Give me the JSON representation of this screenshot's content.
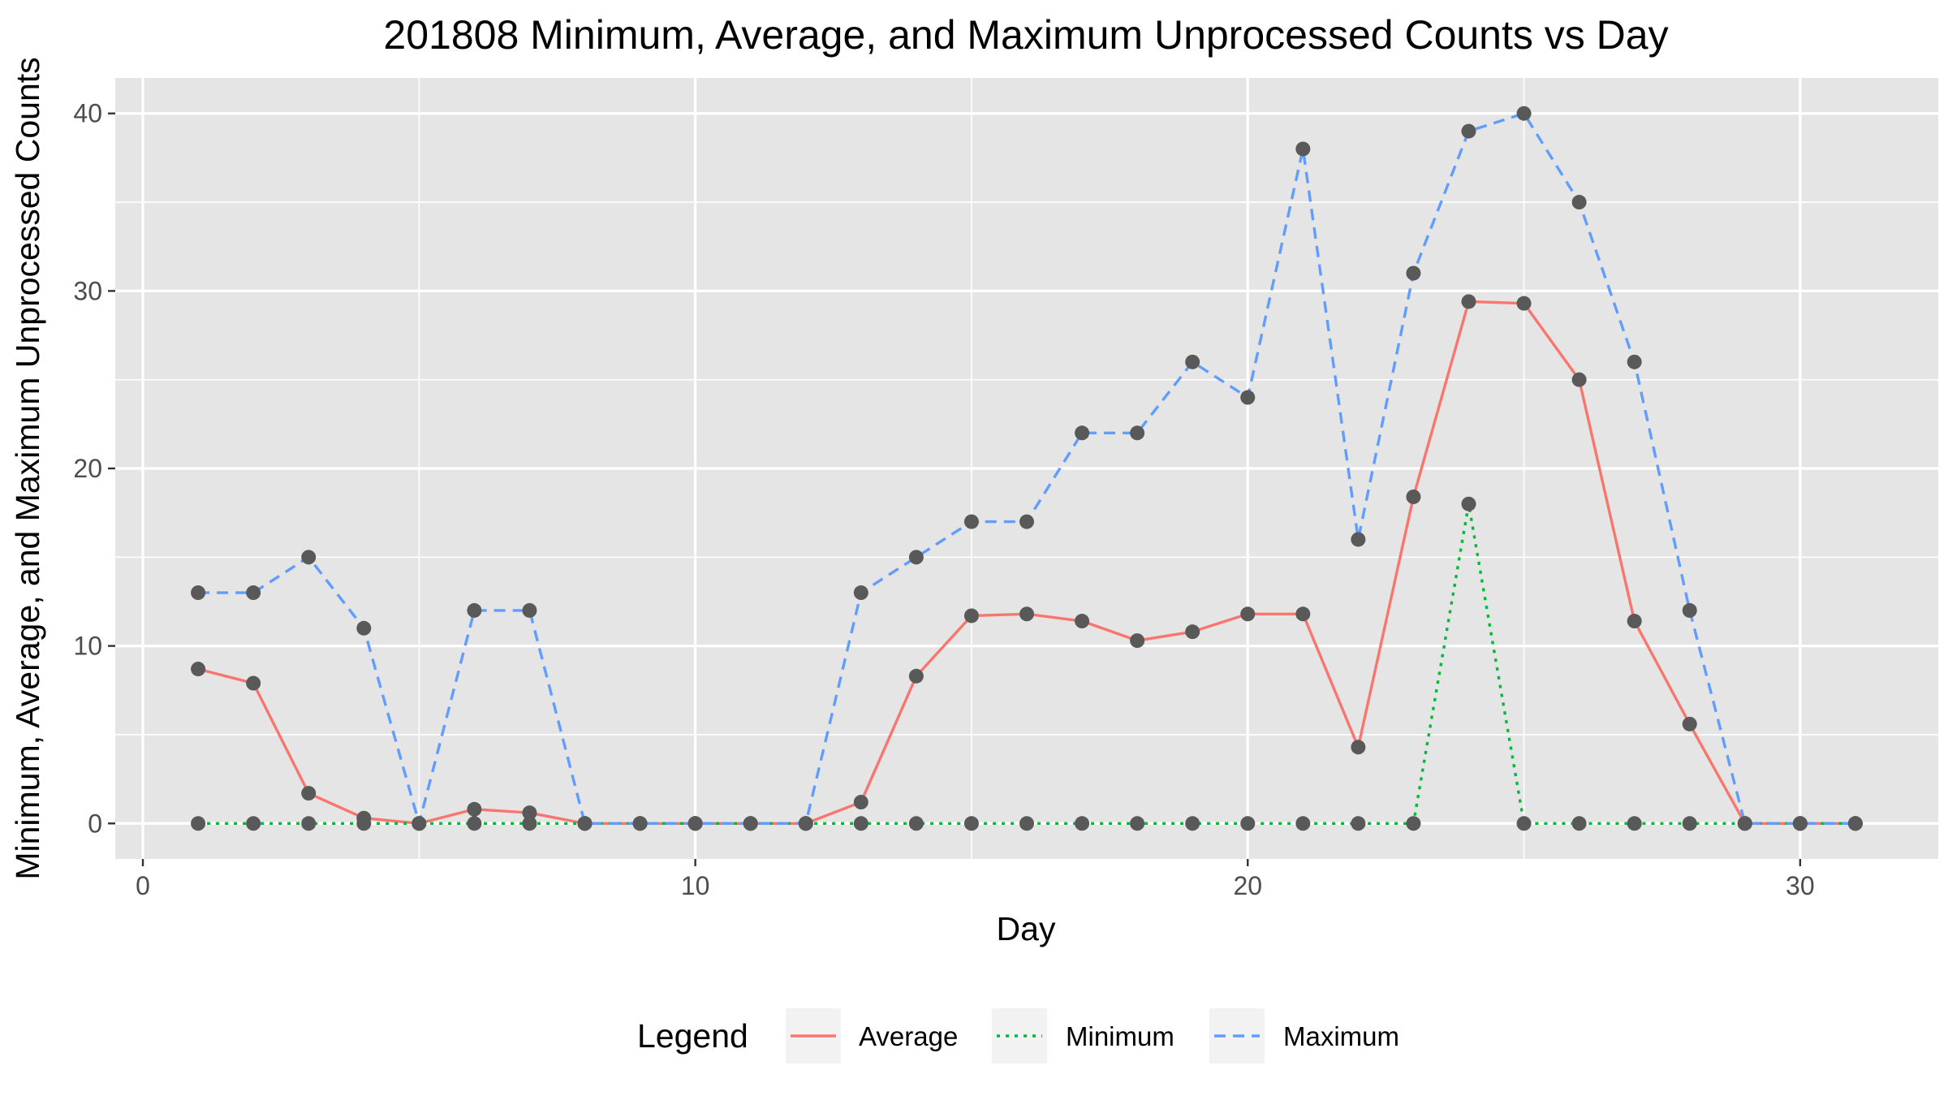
{
  "chart_data": {
    "type": "line",
    "title": "201808 Minimum, Average, and Maximum Unprocessed Counts vs Day",
    "xlabel": "Day",
    "ylabel": "Minimum, Average, and Maximum Unprocessed Counts",
    "xlim": [
      -0.5,
      32.5
    ],
    "ylim": [
      -2,
      42
    ],
    "x_ticks": [
      0,
      10,
      20,
      30
    ],
    "y_ticks": [
      0,
      10,
      20,
      30,
      40
    ],
    "x_tick_labels": [
      "0",
      "10",
      "20",
      "30"
    ],
    "y_tick_labels": [
      "0",
      "10",
      "20",
      "30",
      "40"
    ],
    "grid": true,
    "legend": {
      "title": "Legend",
      "position": "bottom",
      "entries": [
        "Average",
        "Minimum",
        "Maximum"
      ]
    },
    "x": [
      1,
      2,
      3,
      4,
      5,
      6,
      7,
      8,
      9,
      10,
      11,
      12,
      13,
      14,
      15,
      16,
      17,
      18,
      19,
      20,
      21,
      22,
      23,
      24,
      25,
      26,
      27,
      28,
      29,
      30,
      31
    ],
    "series": [
      {
        "name": "Average",
        "color": "#f8766d",
        "dash": "solid",
        "values": [
          8.7,
          7.9,
          1.7,
          0.3,
          0,
          0.8,
          0.6,
          0,
          0,
          0,
          0,
          0,
          1.2,
          8.3,
          11.7,
          11.8,
          11.4,
          10.3,
          10.8,
          11.8,
          11.8,
          4.3,
          18.4,
          29.4,
          29.3,
          25,
          11.4,
          5.6,
          0,
          0,
          0
        ]
      },
      {
        "name": "Minimum",
        "color": "#00ba38",
        "dash": "dotted",
        "values": [
          0,
          0,
          0,
          0,
          0,
          0,
          0,
          0,
          0,
          0,
          0,
          0,
          0,
          0,
          0,
          0,
          0,
          0,
          0,
          0,
          0,
          0,
          0,
          18,
          0,
          0,
          0,
          0,
          0,
          0,
          0
        ]
      },
      {
        "name": "Maximum",
        "color": "#619cff",
        "dash": "dashed",
        "values": [
          13,
          13,
          15,
          11,
          0,
          12,
          12,
          0,
          0,
          0,
          0,
          0,
          13,
          15,
          17,
          17,
          22,
          22,
          26,
          24,
          38,
          16,
          31,
          39,
          40,
          35,
          26,
          12,
          0,
          0,
          0
        ]
      }
    ],
    "point_color": "#595959",
    "panel_background": "#e5e5e5",
    "gridline_color": "#ffffff"
  }
}
